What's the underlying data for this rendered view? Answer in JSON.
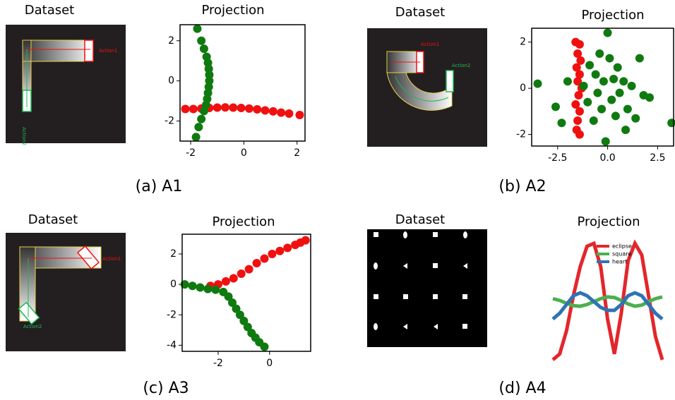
{
  "chart_data": [
    {
      "type": "scatter",
      "title": "Projection",
      "xlim": [
        -2.4,
        2.3
      ],
      "xticks": [
        -2,
        0,
        2
      ],
      "ylim": [
        -3,
        2.8
      ],
      "yticks": [
        -2,
        0,
        2
      ],
      "series": [
        {
          "color": "#f01010",
          "x": [
            -2.2,
            -1.9,
            -1.6,
            -1.3,
            -1.0,
            -0.7,
            -0.4,
            -0.1,
            0.2,
            0.5,
            0.8,
            1.1,
            1.4,
            1.7,
            2.1
          ],
          "values": [
            -1.4,
            -1.4,
            -1.38,
            -1.35,
            -1.33,
            -1.32,
            -1.33,
            -1.35,
            -1.38,
            -1.42,
            -1.47,
            -1.52,
            -1.58,
            -1.63,
            -1.7
          ]
        },
        {
          "color": "#0f7a0f",
          "x": [
            -1.75,
            -1.6,
            -1.5,
            -1.4,
            -1.35,
            -1.32,
            -1.3,
            -1.3,
            -1.32,
            -1.35,
            -1.38,
            -1.42,
            -1.5,
            -1.6,
            -1.7,
            -1.8
          ],
          "values": [
            2.6,
            2.0,
            1.6,
            1.2,
            0.9,
            0.6,
            0.3,
            0,
            -0.3,
            -0.6,
            -0.9,
            -1.2,
            -1.5,
            -1.9,
            -2.3,
            -2.8
          ]
        }
      ]
    },
    {
      "type": "scatter",
      "title": "Projection",
      "xlim": [
        -3.8,
        3.3
      ],
      "xticks": [
        -2.5,
        {
          "value": 0,
          "label": "0.0"
        },
        2.5
      ],
      "ylim": [
        -2.5,
        2.6
      ],
      "yticks": [
        -2,
        0,
        2
      ],
      "series": [
        {
          "color": "#f01010",
          "x": [
            -1.6,
            -1.4,
            -1.5,
            -1.35,
            -1.55,
            -1.4,
            -1.5,
            -1.3,
            -1.45,
            -1.6,
            -1.4,
            -1.5,
            -1.55,
            -1.4
          ],
          "values": [
            2.0,
            1.9,
            1.5,
            1.2,
            0.9,
            0.6,
            0.3,
            0,
            -0.3,
            -0.7,
            -1.0,
            -1.4,
            -1.8,
            -2.0
          ]
        },
        {
          "color": "#0f7a0f",
          "x": [
            -3.5,
            -2.6,
            -2.3,
            -2.0,
            -1.2,
            -1.0,
            -0.9,
            -0.7,
            -0.6,
            -0.5,
            -0.4,
            -0.3,
            -0.2,
            -0.1,
            0,
            0.1,
            0.2,
            0.3,
            0.4,
            0.5,
            0.6,
            0.8,
            0.9,
            1.0,
            1.2,
            1.4,
            1.6,
            1.8,
            2.1,
            3.2
          ],
          "values": [
            0.2,
            -0.8,
            -1.5,
            0.3,
            0.1,
            -0.6,
            1.0,
            -1.4,
            0.6,
            -0.2,
            1.5,
            -0.9,
            0.3,
            -2.3,
            2.4,
            1.3,
            -0.5,
            0.4,
            -1.2,
            0.9,
            -0.2,
            0.3,
            -1.8,
            -0.9,
            0.1,
            -1.3,
            1.3,
            -0.3,
            -0.4,
            -1.5
          ]
        }
      ]
    },
    {
      "type": "scatter",
      "title": "Projection",
      "xlim": [
        -3.4,
        1.6
      ],
      "xticks": [
        -2,
        0
      ],
      "ylim": [
        -4.4,
        3.3
      ],
      "yticks": [
        2,
        0,
        -2,
        -4
      ],
      "series": [
        {
          "color": "#f01010",
          "x": [
            -2.3,
            -2.0,
            -1.7,
            -1.4,
            -1.1,
            -0.8,
            -0.5,
            -0.2,
            0.1,
            0.4,
            0.7,
            1.0,
            1.2,
            1.4
          ],
          "values": [
            -0.1,
            0,
            0.2,
            0.4,
            0.7,
            1.0,
            1.4,
            1.7,
            2.0,
            2.2,
            2.4,
            2.6,
            2.75,
            2.9
          ]
        },
        {
          "color": "#0f7a0f",
          "x": [
            -3.3,
            -3.0,
            -2.7,
            -2.4,
            -2.1,
            -1.8,
            -1.6,
            -1.45,
            -1.3,
            -1.15,
            -1.0,
            -0.85,
            -0.7,
            -0.55,
            -0.4,
            -0.2
          ],
          "values": [
            0,
            -0.1,
            -0.2,
            -0.3,
            -0.35,
            -0.5,
            -0.8,
            -1.2,
            -1.6,
            -2.0,
            -2.4,
            -2.8,
            -3.2,
            -3.5,
            -3.8,
            -4.1
          ]
        }
      ]
    },
    {
      "type": "line",
      "title": "Projection",
      "xlim": [
        0,
        16
      ],
      "ylim": [
        -1,
        1
      ],
      "x": [
        0,
        1,
        2,
        3,
        4,
        5,
        6,
        7,
        8,
        9,
        10,
        11,
        12,
        13,
        14,
        15,
        16
      ],
      "series": [
        {
          "name": "eclipse",
          "color": "#e3262b",
          "values": [
            -1,
            -0.9,
            -0.5,
            0.1,
            0.6,
            0.95,
            1,
            0.6,
            -0.3,
            -0.9,
            -0.2,
            0.7,
            1,
            0.8,
            0.1,
            -0.6,
            -1
          ]
        },
        {
          "name": "square",
          "color": "#4caf50",
          "values": [
            0.05,
            0.02,
            -0.03,
            -0.07,
            -0.08,
            -0.05,
            0,
            0.05,
            0.08,
            0.07,
            0.02,
            -0.04,
            -0.08,
            -0.06,
            0,
            0.05,
            0.08
          ]
        },
        {
          "name": "heart",
          "color": "#2f73b5",
          "values": [
            -0.3,
            -0.2,
            -0.05,
            0.1,
            0.15,
            0.1,
            0,
            -0.1,
            -0.15,
            -0.15,
            -0.05,
            0.1,
            0.15,
            0.1,
            -0.05,
            -0.2,
            -0.3
          ]
        }
      ]
    }
  ],
  "panels": [
    {
      "dataset_title": "Dataset",
      "caption": "(a) A1",
      "annotations": [
        "Action1",
        "Action2"
      ]
    },
    {
      "dataset_title": "Dataset",
      "caption": "(b) A2",
      "annotations": [
        "Action1",
        "Action2"
      ]
    },
    {
      "dataset_title": "Dataset",
      "caption": "(c) A3",
      "annotations": [
        "Action1",
        "Action2"
      ]
    },
    {
      "dataset_title": "Dataset",
      "caption": "(d) A4"
    }
  ]
}
